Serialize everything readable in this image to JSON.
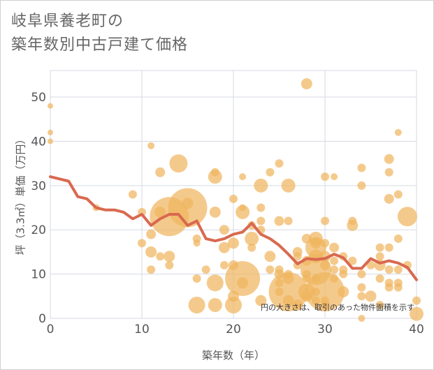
{
  "title_line1": "岐阜県養老町の",
  "title_line2": "築年数別中古戸建て価格",
  "chart_data": {
    "type": "scatter",
    "title": "岐阜県養老町の築年数別中古戸建て価格",
    "xlabel": "築年数（年）",
    "ylabel": "坪（3.3㎡）単価（万円）",
    "xlim": [
      0,
      40
    ],
    "ylim": [
      0,
      56
    ],
    "xticks": [
      0,
      10,
      20,
      30,
      40
    ],
    "yticks": [
      0,
      10,
      20,
      30,
      40,
      50
    ],
    "grid": true,
    "annotation": "円の大きさは、取引のあった物件面積を示す",
    "colors": {
      "bubble": "#f0b660",
      "line": "#d9694f",
      "grid": "#d5dae3"
    },
    "bubbles": [
      [
        0,
        48,
        4
      ],
      [
        0,
        42,
        4
      ],
      [
        0,
        40,
        4
      ],
      [
        5,
        25,
        5
      ],
      [
        9,
        28,
        6
      ],
      [
        10,
        24,
        6
      ],
      [
        10,
        17,
        6
      ],
      [
        11,
        39,
        5
      ],
      [
        11,
        19,
        7
      ],
      [
        11,
        15,
        8
      ],
      [
        11,
        11,
        6
      ],
      [
        12,
        33,
        7
      ],
      [
        12,
        14,
        6
      ],
      [
        12,
        24,
        8
      ],
      [
        13,
        23,
        28
      ],
      [
        13,
        12,
        6
      ],
      [
        13,
        14,
        8
      ],
      [
        14,
        35,
        13
      ],
      [
        15,
        25,
        28
      ],
      [
        15,
        26,
        8
      ],
      [
        16,
        18,
        6
      ],
      [
        16,
        17,
        5
      ],
      [
        16,
        9,
        6
      ],
      [
        16,
        3,
        12
      ],
      [
        17,
        11,
        6
      ],
      [
        18,
        32,
        10
      ],
      [
        18,
        33,
        6
      ],
      [
        18,
        24,
        8
      ],
      [
        18,
        8,
        12
      ],
      [
        18,
        3,
        10
      ],
      [
        19,
        20,
        7
      ],
      [
        19,
        16,
        8
      ],
      [
        19,
        12,
        6
      ],
      [
        20,
        27,
        6
      ],
      [
        20,
        17,
        8
      ],
      [
        20,
        12,
        7
      ],
      [
        20,
        5,
        8
      ],
      [
        20,
        3,
        12
      ],
      [
        21,
        9,
        25
      ],
      [
        21,
        24,
        10
      ],
      [
        21,
        25,
        5
      ],
      [
        21,
        8,
        8
      ],
      [
        21,
        32,
        5
      ],
      [
        22,
        21,
        6
      ],
      [
        22,
        18,
        10
      ],
      [
        22,
        16,
        6
      ],
      [
        23,
        30,
        10
      ],
      [
        23,
        25,
        6
      ],
      [
        23,
        22,
        6
      ],
      [
        23,
        20,
        6
      ],
      [
        23,
        4,
        8
      ],
      [
        24,
        33,
        6
      ],
      [
        24,
        14,
        8
      ],
      [
        24,
        11,
        6
      ],
      [
        25,
        35,
        6
      ],
      [
        25,
        22,
        7
      ],
      [
        25,
        11,
        6
      ],
      [
        25,
        10,
        7
      ],
      [
        25,
        8,
        6
      ],
      [
        25,
        6,
        6
      ],
      [
        26,
        30,
        10
      ],
      [
        26,
        22,
        6
      ],
      [
        26,
        10,
        6
      ],
      [
        26,
        9,
        8
      ],
      [
        26,
        6,
        28
      ],
      [
        26,
        4,
        8
      ],
      [
        27,
        15,
        7
      ],
      [
        27,
        14,
        6
      ],
      [
        27,
        12,
        6
      ],
      [
        27,
        3,
        8
      ],
      [
        28,
        53,
        8
      ],
      [
        28,
        18,
        7
      ],
      [
        28,
        13,
        7
      ],
      [
        28,
        10,
        6
      ],
      [
        28,
        9,
        6
      ],
      [
        28,
        6,
        12
      ],
      [
        28,
        5,
        8
      ],
      [
        29,
        18,
        10
      ],
      [
        29,
        17,
        8
      ],
      [
        29,
        16,
        15
      ],
      [
        29,
        14,
        10
      ],
      [
        29,
        11,
        22
      ],
      [
        29,
        9,
        6
      ],
      [
        29,
        6,
        6
      ],
      [
        29,
        4,
        6
      ],
      [
        30,
        32,
        6
      ],
      [
        30,
        22,
        6
      ],
      [
        30,
        17,
        6
      ],
      [
        30,
        14,
        8
      ],
      [
        30,
        12,
        7
      ],
      [
        30,
        6,
        28
      ],
      [
        30,
        4,
        6
      ],
      [
        30,
        3,
        6
      ],
      [
        31,
        32,
        5
      ],
      [
        31,
        16,
        7
      ],
      [
        31,
        13,
        6
      ],
      [
        31,
        11,
        6
      ],
      [
        31,
        9,
        6
      ],
      [
        32,
        14,
        6
      ],
      [
        32,
        11,
        6
      ],
      [
        32,
        10,
        6
      ],
      [
        32,
        6,
        8
      ],
      [
        33,
        22,
        6
      ],
      [
        33,
        21,
        8
      ],
      [
        33,
        13,
        6
      ],
      [
        34,
        34,
        6
      ],
      [
        34,
        30,
        6
      ],
      [
        34,
        10,
        6
      ],
      [
        34,
        7,
        6
      ],
      [
        34,
        5,
        6
      ],
      [
        34,
        0,
        5
      ],
      [
        35,
        12,
        6
      ],
      [
        35,
        5,
        8
      ],
      [
        36,
        16,
        6
      ],
      [
        36,
        14,
        6
      ],
      [
        36,
        12,
        8
      ],
      [
        36,
        9,
        6
      ],
      [
        36,
        3,
        6
      ],
      [
        37,
        36,
        7
      ],
      [
        37,
        33,
        6
      ],
      [
        37,
        27,
        7
      ],
      [
        37,
        16,
        6
      ],
      [
        37,
        11,
        6
      ],
      [
        37,
        8,
        6
      ],
      [
        37,
        7,
        6
      ],
      [
        38,
        42,
        5
      ],
      [
        38,
        28,
        6
      ],
      [
        38,
        18,
        6
      ],
      [
        38,
        11,
        6
      ],
      [
        38,
        8,
        6
      ],
      [
        38,
        7,
        6
      ],
      [
        39,
        23,
        14
      ],
      [
        39,
        12,
        6
      ],
      [
        40,
        4,
        6
      ],
      [
        40,
        1,
        10
      ]
    ],
    "trend": {
      "x": [
        0,
        1,
        2,
        3,
        4,
        5,
        6,
        7,
        8,
        9,
        10,
        11,
        12,
        13,
        14,
        15,
        16,
        17,
        18,
        19,
        20,
        21,
        22,
        23,
        24,
        25,
        26,
        27,
        28,
        29,
        30,
        31,
        32,
        33,
        34,
        35,
        36,
        37,
        38,
        39,
        40
      ],
      "y": [
        32,
        31.5,
        31,
        27.5,
        27,
        25,
        24.5,
        24.5,
        24,
        22.5,
        23.5,
        21,
        22.5,
        23.5,
        23.5,
        21,
        22,
        18,
        17.5,
        18,
        19,
        19.5,
        21.5,
        19,
        18,
        16.5,
        14.5,
        12.3,
        13.5,
        13.3,
        13.5,
        14.5,
        13.7,
        11.3,
        11.3,
        13.5,
        12.5,
        13,
        12.5,
        11.5,
        8.7
      ]
    }
  }
}
